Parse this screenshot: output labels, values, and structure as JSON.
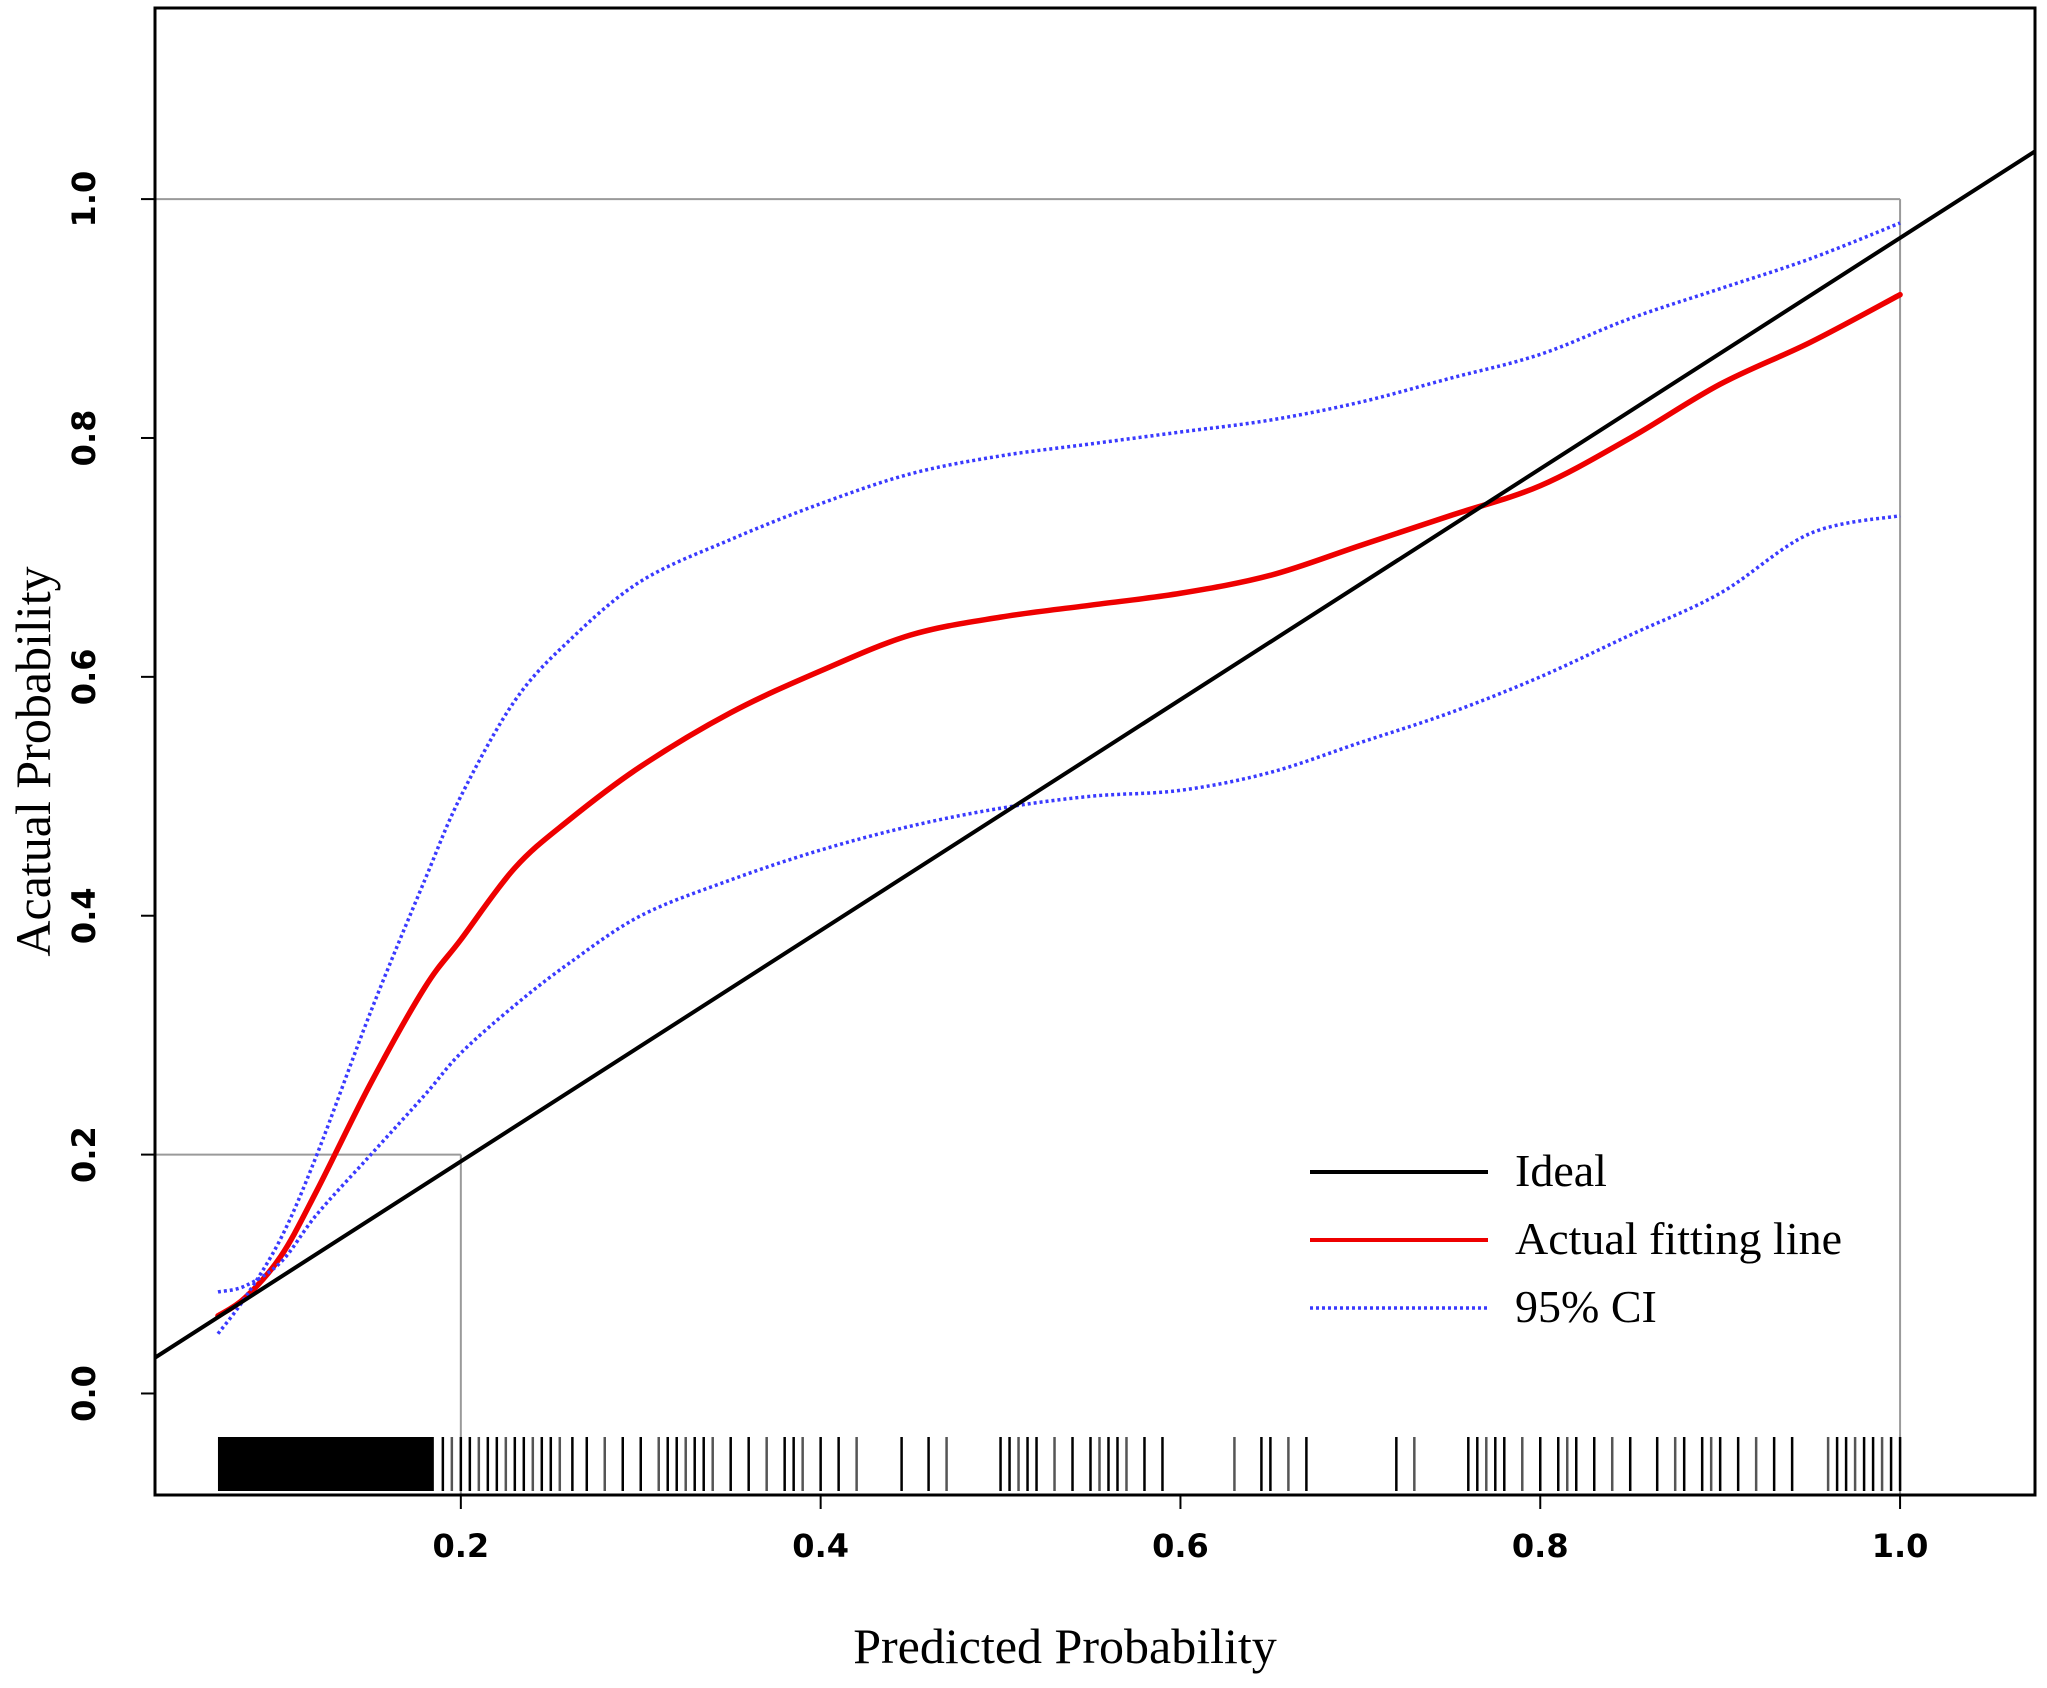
{
  "chart_data": {
    "type": "line",
    "title": "",
    "xlabel": "Predicted Probability",
    "ylabel": "Acatual Probability",
    "xlim": [
      0.03,
      1.075
    ],
    "ylim": [
      -0.085,
      1.16
    ],
    "x_ticks": [
      0.2,
      0.4,
      0.6,
      0.8,
      1.0
    ],
    "x_tick_labels": [
      "0.2",
      "0.4",
      "0.6",
      "0.8",
      "1.0"
    ],
    "y_ticks": [
      0.0,
      0.2,
      0.4,
      0.6,
      0.8,
      1.0
    ],
    "y_tick_labels": [
      "0.0",
      "0.2",
      "0.4",
      "0.6",
      "0.8",
      "1.0"
    ],
    "reference_lines": {
      "horizontal": [
        {
          "y": 1.0,
          "x_from": 0.03,
          "x_to": 1.0
        },
        {
          "y": 0.2,
          "x_from": 0.03,
          "x_to": 0.2
        }
      ],
      "vertical": [
        {
          "x": 0.2,
          "y_from": -0.085,
          "y_to": 0.2
        },
        {
          "x": 1.0,
          "y_from": -0.085,
          "y_to": 1.0
        }
      ]
    },
    "legend": {
      "position": "bottom-right",
      "entries": [
        {
          "label": "Ideal",
          "color": "#000000",
          "style": "solid"
        },
        {
          "label": "Actual fitting line",
          "color": "#ee0000",
          "style": "solid"
        },
        {
          "label": "95% CI",
          "color": "#3a3aff",
          "style": "dotted"
        }
      ]
    },
    "series": [
      {
        "name": "Ideal",
        "color": "#000000",
        "style": "solid",
        "x": [
          0.03,
          1.075
        ],
        "y": [
          0.03,
          1.04
        ]
      },
      {
        "name": "Actual fitting line",
        "color": "#ee0000",
        "style": "solid",
        "x": [
          0.065,
          0.08,
          0.1,
          0.12,
          0.15,
          0.18,
          0.2,
          0.23,
          0.26,
          0.3,
          0.35,
          0.4,
          0.45,
          0.5,
          0.55,
          0.6,
          0.65,
          0.7,
          0.75,
          0.8,
          0.85,
          0.9,
          0.95,
          1.0
        ],
        "y": [
          0.065,
          0.08,
          0.115,
          0.17,
          0.26,
          0.34,
          0.38,
          0.44,
          0.48,
          0.525,
          0.57,
          0.605,
          0.635,
          0.65,
          0.66,
          0.67,
          0.685,
          0.71,
          0.735,
          0.76,
          0.8,
          0.845,
          0.88,
          0.92
        ]
      },
      {
        "name": "95% CI (upper)",
        "color": "#3a3aff",
        "style": "dotted",
        "x": [
          0.065,
          0.08,
          0.1,
          0.12,
          0.15,
          0.18,
          0.2,
          0.23,
          0.26,
          0.3,
          0.35,
          0.4,
          0.45,
          0.5,
          0.55,
          0.6,
          0.65,
          0.7,
          0.75,
          0.8,
          0.85,
          0.9,
          0.95,
          1.0
        ],
        "y": [
          0.05,
          0.08,
          0.13,
          0.2,
          0.32,
          0.43,
          0.5,
          0.58,
          0.63,
          0.68,
          0.715,
          0.745,
          0.77,
          0.785,
          0.795,
          0.805,
          0.815,
          0.83,
          0.85,
          0.87,
          0.9,
          0.925,
          0.95,
          0.98
        ]
      },
      {
        "name": "95% CI (lower)",
        "color": "#3a3aff",
        "style": "dotted",
        "x": [
          0.065,
          0.08,
          0.1,
          0.12,
          0.15,
          0.18,
          0.2,
          0.23,
          0.26,
          0.3,
          0.35,
          0.4,
          0.45,
          0.5,
          0.55,
          0.6,
          0.65,
          0.7,
          0.75,
          0.8,
          0.85,
          0.9,
          0.95,
          1.0
        ],
        "y": [
          0.085,
          0.09,
          0.11,
          0.15,
          0.2,
          0.25,
          0.285,
          0.325,
          0.36,
          0.4,
          0.43,
          0.455,
          0.475,
          0.49,
          0.5,
          0.505,
          0.52,
          0.545,
          0.57,
          0.6,
          0.635,
          0.67,
          0.72,
          0.735
        ]
      }
    ],
    "rug": {
      "dense_ranges": [
        [
          0.065,
          0.185
        ]
      ],
      "values": [
        0.19,
        0.195,
        0.2,
        0.205,
        0.21,
        0.215,
        0.22,
        0.225,
        0.23,
        0.235,
        0.24,
        0.245,
        0.25,
        0.255,
        0.262,
        0.27,
        0.28,
        0.29,
        0.3,
        0.31,
        0.315,
        0.32,
        0.325,
        0.33,
        0.335,
        0.34,
        0.35,
        0.36,
        0.37,
        0.38,
        0.385,
        0.39,
        0.4,
        0.41,
        0.42,
        0.445,
        0.46,
        0.47,
        0.5,
        0.505,
        0.51,
        0.515,
        0.52,
        0.53,
        0.54,
        0.55,
        0.555,
        0.56,
        0.565,
        0.57,
        0.58,
        0.59,
        0.63,
        0.645,
        0.65,
        0.66,
        0.67,
        0.72,
        0.73,
        0.76,
        0.765,
        0.77,
        0.775,
        0.78,
        0.79,
        0.8,
        0.81,
        0.815,
        0.82,
        0.83,
        0.84,
        0.85,
        0.865,
        0.875,
        0.88,
        0.89,
        0.895,
        0.9,
        0.91,
        0.92,
        0.93,
        0.94,
        0.96,
        0.965,
        0.97,
        0.975,
        0.98,
        0.985,
        0.99,
        0.995,
        1.0
      ]
    }
  }
}
